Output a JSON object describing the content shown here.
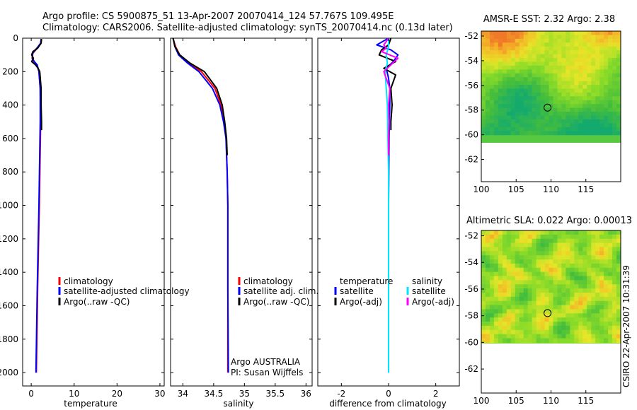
{
  "header": {
    "line1": "Argo profile: CS 5900875_51 13-Apr-2007 20070414_124 57.767S 109.495E",
    "line2": "Climatology: CARS2006. Satellite-adjusted climatology: synTS_20070414.nc (0.13d later)"
  },
  "colors": {
    "climatology": "#ff0000",
    "satellite": "#0000ff",
    "argo": "#000000",
    "salinity_satellite": "#00e5ff",
    "salinity_argo": "#ff00ff"
  },
  "chart_data": [
    {
      "id": "temperature",
      "type": "line",
      "xlabel": "temperature",
      "xlim": [
        -2,
        31
      ],
      "xticks": [
        0,
        10,
        20,
        30
      ],
      "ylim": [
        0,
        2080
      ],
      "yticks": [
        0,
        200,
        400,
        600,
        800,
        1000,
        1200,
        1400,
        1600,
        1800,
        2000
      ],
      "y_reversed": true,
      "legend": [
        "climatology",
        "satellite-adjusted climatology",
        "Argo(..raw -QC)"
      ],
      "series": [
        {
          "name": "climatology",
          "color": "#ff0000",
          "depth": [
            5,
            30,
            60,
            90,
            120,
            140,
            160,
            200,
            300,
            500,
            1000,
            1500,
            2000
          ],
          "values": [
            2.3,
            2.2,
            1.4,
            0.4,
            0.2,
            0.6,
            1.3,
            1.8,
            2.1,
            2.2,
            1.9,
            1.5,
            1.2
          ]
        },
        {
          "name": "satellite-adjusted climatology",
          "color": "#0000ff",
          "depth": [
            5,
            30,
            60,
            90,
            120,
            140,
            160,
            200,
            300,
            500,
            1000,
            1500,
            2000
          ],
          "values": [
            2.3,
            2.2,
            1.3,
            0.3,
            0.3,
            0.7,
            1.4,
            1.8,
            2.1,
            2.1,
            1.8,
            1.4,
            1.1
          ]
        },
        {
          "name": "Argo(..raw -QC)",
          "color": "#000000",
          "depth": [
            5,
            30,
            60,
            80,
            100,
            120,
            140,
            160,
            180,
            200,
            300,
            400,
            500,
            550
          ],
          "values": [
            2.4,
            2.3,
            1.5,
            0.4,
            0.1,
            0.5,
            0.1,
            1.0,
            1.6,
            2.0,
            2.3,
            2.3,
            2.4,
            2.4
          ]
        }
      ]
    },
    {
      "id": "salinity",
      "type": "line",
      "xlabel": "salinity",
      "xlim": [
        33.8,
        36.1
      ],
      "xticks": [
        34,
        34.5,
        35,
        35.5,
        36
      ],
      "ylim": [
        0,
        2080
      ],
      "y_reversed": true,
      "legend": [
        "climatology",
        "satellite adj. clim.",
        "Argo(..raw -QC)"
      ],
      "annotation": [
        "Argo AUSTRALIA",
        "PI: Susan Wijffels"
      ],
      "series": [
        {
          "name": "climatology",
          "color": "#ff0000",
          "depth": [
            0,
            50,
            100,
            150,
            200,
            300,
            400,
            500,
            600,
            800,
            1000,
            1500,
            2000
          ],
          "values": [
            33.84,
            33.88,
            33.95,
            34.1,
            34.3,
            34.52,
            34.62,
            34.67,
            34.7,
            34.72,
            34.73,
            34.73,
            34.73
          ]
        },
        {
          "name": "satellite adj. clim.",
          "color": "#0000ff",
          "depth": [
            0,
            50,
            100,
            150,
            200,
            300,
            400,
            500,
            600,
            800,
            1000,
            1500,
            2000
          ],
          "values": [
            33.84,
            33.87,
            33.93,
            34.08,
            34.26,
            34.48,
            34.6,
            34.66,
            34.7,
            34.72,
            34.73,
            34.73,
            34.74
          ]
        },
        {
          "name": "Argo(..raw -QC)",
          "color": "#000000",
          "depth": [
            0,
            50,
            100,
            150,
            200,
            300,
            400,
            500,
            600,
            700
          ],
          "values": [
            33.84,
            33.87,
            33.95,
            34.12,
            34.35,
            34.55,
            34.64,
            34.68,
            34.71,
            34.72
          ]
        }
      ]
    },
    {
      "id": "difference",
      "type": "line",
      "xlabel": "difference from climatology",
      "xlim": [
        -3,
        3
      ],
      "xticks": [
        -2,
        0,
        2
      ],
      "ylim": [
        0,
        2080
      ],
      "y_reversed": true,
      "legend_temperature_title": "temperature",
      "legend_temperature": [
        "satellite",
        "Argo(-adj)"
      ],
      "legend_salinity_title": "salinity",
      "legend_salinity": [
        "satellite",
        "Argo(-adj)"
      ],
      "series": [
        {
          "name": "temperature satellite",
          "color": "#0000ff",
          "depth": [
            0,
            40,
            70,
            100,
            140,
            180,
            240,
            300,
            400,
            600,
            1000,
            1500,
            2000
          ],
          "values": [
            0.0,
            -0.5,
            0.1,
            0.4,
            0.2,
            -0.1,
            0.0,
            0.05,
            0.05,
            0.02,
            0.0,
            0.0,
            0.0
          ]
        },
        {
          "name": "temperature Argo(-adj)",
          "color": "#000000",
          "depth": [
            0,
            40,
            70,
            100,
            140,
            180,
            220,
            300,
            400,
            500,
            550
          ],
          "values": [
            0.1,
            0.0,
            -0.3,
            -0.4,
            0.3,
            -0.2,
            0.3,
            0.1,
            0.15,
            0.1,
            0.1
          ]
        },
        {
          "name": "salinity satellite",
          "color": "#00e5ff",
          "depth": [
            0,
            50,
            100,
            150,
            200,
            300,
            400,
            600,
            800,
            1000,
            1500,
            2000
          ],
          "values": [
            0.0,
            0.0,
            -0.1,
            -0.05,
            -0.15,
            -0.1,
            -0.05,
            -0.03,
            0.0,
            0.0,
            0.0,
            0.0
          ]
        },
        {
          "name": "salinity Argo(-adj)",
          "color": "#ff00ff",
          "depth": [
            0,
            40,
            60,
            80,
            120,
            160,
            200,
            300,
            400,
            500,
            600,
            700
          ],
          "values": [
            0.0,
            -0.2,
            -0.1,
            -0.3,
            0.4,
            0.1,
            -0.2,
            0.05,
            0.0,
            0.02,
            0.0,
            0.0
          ]
        }
      ]
    },
    {
      "id": "sst-map",
      "type": "heatmap",
      "title": "AMSR-E SST: 2.32 Argo: 2.38",
      "xlim": [
        100,
        120
      ],
      "xticks": [
        100,
        105,
        110,
        115
      ],
      "ylim": [
        -63.8,
        -51.6
      ],
      "yticks": [
        -52,
        -54,
        -56,
        -58,
        -60,
        -62
      ],
      "data_extent_lat": [
        -60,
        -51.6
      ],
      "marker": {
        "lon": 109.5,
        "lat": -57.8
      }
    },
    {
      "id": "sla-map",
      "type": "heatmap",
      "title": "Altimetric SLA: 0.022 Argo: 0.00013",
      "xlim": [
        100,
        120
      ],
      "xticks": [
        100,
        105,
        110,
        115
      ],
      "ylim": [
        -63.8,
        -51.6
      ],
      "yticks": [
        -52,
        -54,
        -56,
        -58,
        -60,
        -62
      ],
      "data_extent_lat": [
        -60,
        -51.6
      ],
      "marker": {
        "lon": 109.5,
        "lat": -57.8
      }
    }
  ],
  "footer": {
    "credit": "CSIRO 22-Apr-2007 10:31:39"
  }
}
